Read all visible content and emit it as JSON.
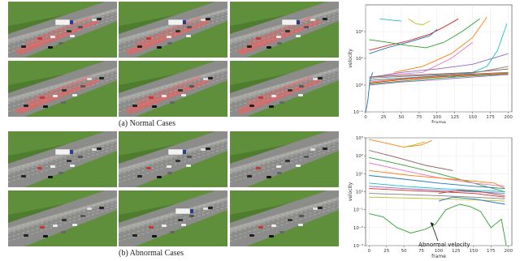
{
  "captions": {
    "normal": "(a)  Normal Cases",
    "abnormal": "(b)  Abnormal Cases"
  },
  "colors": {
    "grass": "#5f8f3a",
    "road": "#8c8d8a",
    "trail": "#ff5a5a"
  },
  "frames": {
    "normal": [
      {
        "trail": true,
        "truck": true
      },
      {
        "trail": true,
        "truck": true
      },
      {
        "trail": true,
        "truck": true
      },
      {
        "trail": true,
        "truck": false
      },
      {
        "trail": true,
        "truck": false
      },
      {
        "trail": true,
        "truck": false
      }
    ],
    "abnormal": [
      {
        "trail": false,
        "truck": true
      },
      {
        "trail": false,
        "truck": true
      },
      {
        "trail": false,
        "truck": false
      },
      {
        "trail": false,
        "truck": false
      },
      {
        "trail": false,
        "truck": true
      },
      {
        "trail": false,
        "truck": false
      }
    ]
  },
  "chart_data": [
    {
      "type": "line",
      "title": "",
      "xlabel": "frame",
      "ylabel": "velocity",
      "xlim": [
        0,
        205
      ],
      "ylim": [
        0.1,
        1000
      ],
      "yscale": "log",
      "xticks": [
        0,
        25,
        50,
        75,
        100,
        125,
        150,
        175,
        200
      ],
      "yticks": [
        {
          "value": 0.1,
          "label": "10⁻¹"
        },
        {
          "value": 1,
          "label": "10⁰"
        },
        {
          "value": 10,
          "label": "10¹"
        },
        {
          "value": 100,
          "label": "10²"
        }
      ],
      "grid": true,
      "series": [
        {
          "color": "#17becf",
          "x": [
            20,
            30,
            40,
            50
          ],
          "y": [
            300,
            280,
            260,
            250
          ]
        },
        {
          "color": "#d62728",
          "x": [
            5,
            30,
            60,
            90,
            110,
            130
          ],
          "y": [
            20,
            30,
            45,
            80,
            150,
            300
          ]
        },
        {
          "color": "#1f77b4",
          "x": [
            5,
            30,
            60,
            90,
            100
          ],
          "y": [
            15,
            25,
            40,
            70,
            120
          ]
        },
        {
          "color": "#2ca02c",
          "x": [
            5,
            30,
            60,
            85,
            110,
            135,
            160
          ],
          "y": [
            50,
            40,
            30,
            25,
            40,
            100,
            300
          ]
        },
        {
          "color": "#e377c2",
          "x": [
            5,
            40,
            80,
            120,
            150
          ],
          "y": [
            2,
            2.5,
            3,
            10,
            40
          ]
        },
        {
          "color": "#bcbd22",
          "x": [
            60,
            70,
            80,
            90
          ],
          "y": [
            300,
            200,
            180,
            250
          ]
        },
        {
          "color": "#ff7f0e",
          "x": [
            40,
            80,
            120,
            150,
            170
          ],
          "y": [
            3,
            5,
            15,
            60,
            350
          ]
        },
        {
          "color": "#9467bd",
          "x": [
            10,
            50,
            100,
            150,
            200
          ],
          "y": [
            2,
            3,
            4,
            6,
            15
          ]
        },
        {
          "color": "#17becf",
          "x": [
            120,
            150,
            170,
            185,
            198
          ],
          "y": [
            2,
            3,
            5,
            20,
            200
          ]
        },
        {
          "color": "#8c564b",
          "x": [
            5,
            50,
            100,
            150,
            200
          ],
          "y": [
            2,
            2.3,
            2.6,
            3,
            4
          ]
        },
        {
          "color": "#7f7f7f",
          "x": [
            5,
            50,
            100,
            150,
            200
          ],
          "y": [
            1.8,
            2.1,
            2.4,
            2.8,
            5
          ]
        },
        {
          "color": "#1f77b4",
          "x": [
            5,
            50,
            100,
            150,
            200
          ],
          "y": [
            1.5,
            1.8,
            2.2,
            2.6,
            3
          ]
        },
        {
          "color": "#d62728",
          "x": [
            5,
            50,
            100,
            150,
            200
          ],
          "y": [
            1.2,
            1.6,
            2,
            2.4,
            2.8
          ]
        },
        {
          "color": "#2ca02c",
          "x": [
            5,
            50,
            100,
            150,
            200
          ],
          "y": [
            1.1,
            1.4,
            1.8,
            2.2,
            2.6
          ]
        },
        {
          "color": "#ff7f0e",
          "x": [
            5,
            50,
            100,
            150,
            200
          ],
          "y": [
            1.3,
            1.7,
            2.1,
            2.5,
            2.9
          ]
        },
        {
          "color": "#9467bd",
          "x": [
            5,
            50,
            100,
            150,
            200
          ],
          "y": [
            1,
            1.3,
            1.6,
            2,
            2.5
          ]
        },
        {
          "color": "#1f77b4",
          "x": [
            0,
            3,
            6,
            10
          ],
          "y": [
            0.1,
            0.25,
            1.5,
            3
          ]
        }
      ]
    },
    {
      "type": "line",
      "title": "",
      "xlabel": "frame",
      "ylabel": "velocity",
      "xlim": [
        -5,
        205
      ],
      "ylim": [
        0.001,
        1000
      ],
      "yscale": "log",
      "xticks": [
        0,
        25,
        50,
        75,
        100,
        125,
        150,
        175,
        200
      ],
      "yticks": [
        {
          "value": 0.001,
          "label": "10⁻³"
        },
        {
          "value": 0.01,
          "label": "10⁻²"
        },
        {
          "value": 0.1,
          "label": "10⁻¹"
        },
        {
          "value": 1,
          "label": "10⁰"
        },
        {
          "value": 10,
          "label": "10¹"
        },
        {
          "value": 100,
          "label": "10²"
        },
        {
          "value": 1000,
          "label": "10³"
        }
      ],
      "grid": true,
      "annotations": [
        {
          "text": "Abnormal velocity",
          "point_to": [
            88,
            0.02
          ],
          "text_at": [
            108,
            0.0009
          ]
        }
      ],
      "series": [
        {
          "color": "#ff7f0e",
          "x": [
            0,
            25,
            50,
            75,
            90
          ],
          "y": [
            800,
            500,
            300,
            400,
            700
          ]
        },
        {
          "color": "#bcbd22",
          "x": [
            50,
            65,
            80
          ],
          "y": [
            300,
            400,
            600
          ]
        },
        {
          "color": "#8c564b",
          "x": [
            0,
            40,
            80,
            120
          ],
          "y": [
            200,
            80,
            30,
            15
          ]
        },
        {
          "color": "#2ca02c",
          "x": [
            0,
            50,
            100,
            150,
            195
          ],
          "y": [
            80,
            30,
            10,
            3,
            1
          ]
        },
        {
          "color": "#e377c2",
          "x": [
            0,
            50,
            100,
            150,
            195
          ],
          "y": [
            40,
            15,
            6,
            3,
            2
          ]
        },
        {
          "color": "#ff7f0e",
          "x": [
            0,
            60,
            120,
            180,
            195
          ],
          "y": [
            15,
            8,
            5,
            3,
            1.5
          ]
        },
        {
          "color": "#1f77b4",
          "x": [
            0,
            50,
            100,
            150,
            195
          ],
          "y": [
            8,
            5,
            3,
            2,
            1.5
          ]
        },
        {
          "color": "#17becf",
          "x": [
            0,
            50,
            100,
            150,
            195
          ],
          "y": [
            3,
            2,
            1.5,
            1.2,
            1
          ]
        },
        {
          "color": "#9467bd",
          "x": [
            0,
            50,
            100,
            150,
            195
          ],
          "y": [
            2,
            1.5,
            1.2,
            1,
            0.8
          ]
        },
        {
          "color": "#d62728",
          "x": [
            0,
            50,
            100,
            150,
            195
          ],
          "y": [
            1.5,
            1.2,
            1,
            0.8,
            0.5
          ]
        },
        {
          "color": "#7f7f7f",
          "x": [
            0,
            50,
            100,
            150,
            195
          ],
          "y": [
            0.8,
            0.7,
            0.6,
            0.5,
            0.4
          ]
        },
        {
          "color": "#bcbd22",
          "x": [
            0,
            50,
            100,
            150,
            195
          ],
          "y": [
            0.5,
            0.45,
            0.4,
            0.35,
            0.3
          ]
        },
        {
          "color": "#2ca02c",
          "x": [
            0,
            20,
            40,
            60,
            80,
            95,
            110,
            130,
            145,
            160,
            175,
            190,
            197
          ],
          "y": [
            0.06,
            0.04,
            0.01,
            0.005,
            0.008,
            0.015,
            0.1,
            0.2,
            0.15,
            0.08,
            0.01,
            0.03,
            0.001
          ]
        },
        {
          "color": "#1f77b4",
          "x": [
            100,
            120,
            150,
            195
          ],
          "y": [
            0.3,
            0.5,
            0.4,
            0.2
          ]
        },
        {
          "color": "#8c564b",
          "x": [
            100,
            130,
            160,
            195
          ],
          "y": [
            0.8,
            1.2,
            1,
            0.6
          ]
        }
      ]
    }
  ]
}
